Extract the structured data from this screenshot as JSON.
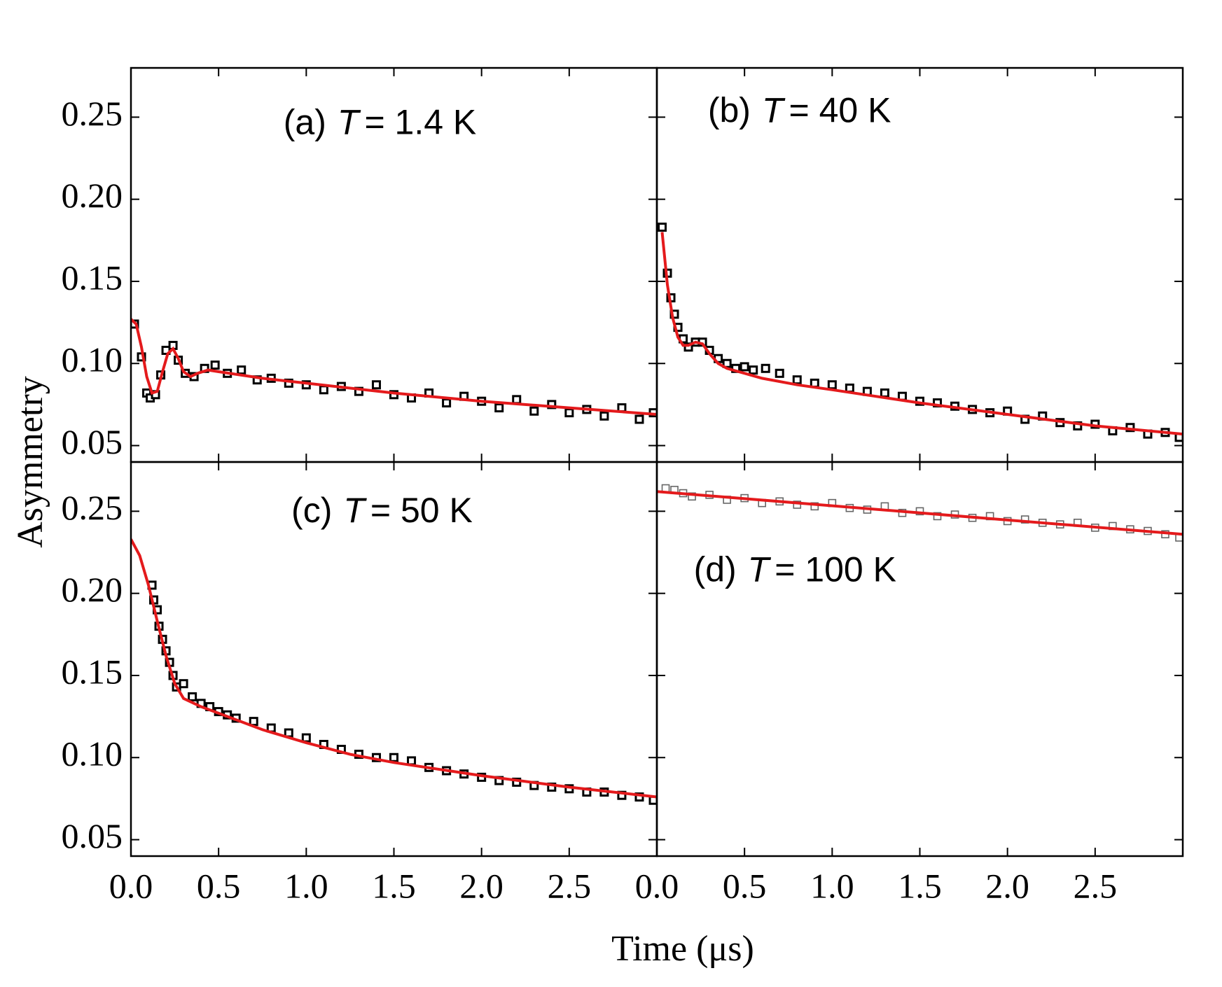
{
  "xlabel": "Time (μs)",
  "ylabel": "Asymmetry",
  "chart_data": [
    {
      "type": "scatter",
      "panel": "(a)",
      "variable": "T",
      "condition": "= 1.4 K",
      "xlim": [
        0,
        3
      ],
      "ylim": [
        0.04,
        0.28
      ],
      "xticks": [
        0,
        0.5,
        1,
        1.5,
        2,
        2.5,
        3
      ],
      "yticks": [
        0.05,
        {
          "value": 0.1,
          "label": "0.10"
        },
        0.15,
        {
          "value": 0.2,
          "label": "0.20"
        },
        0.25
      ],
      "series": [
        {
          "style": "markers",
          "color": "#000000",
          "x": [
            0.02,
            0.06,
            0.09,
            0.11,
            0.14,
            0.17,
            0.2,
            0.24,
            0.27,
            0.31,
            0.36,
            0.42,
            0.48,
            0.55,
            0.63,
            0.72,
            0.8,
            0.9,
            1.0,
            1.1,
            1.2,
            1.3,
            1.4,
            1.5,
            1.6,
            1.7,
            1.8,
            1.9,
            2.0,
            2.1,
            2.2,
            2.3,
            2.4,
            2.5,
            2.6,
            2.7,
            2.8,
            2.9,
            2.98
          ],
          "values": [
            0.124,
            0.104,
            0.082,
            0.079,
            0.081,
            0.093,
            0.108,
            0.111,
            0.102,
            0.094,
            0.092,
            0.097,
            0.099,
            0.094,
            0.096,
            0.09,
            0.091,
            0.088,
            0.087,
            0.084,
            0.086,
            0.083,
            0.087,
            0.081,
            0.079,
            0.082,
            0.076,
            0.08,
            0.077,
            0.073,
            0.078,
            0.071,
            0.075,
            0.07,
            0.072,
            0.068,
            0.073,
            0.066,
            0.07
          ]
        },
        {
          "style": "line",
          "color": "#e41a1c",
          "x": [
            0,
            0.03,
            0.06,
            0.09,
            0.12,
            0.15,
            0.18,
            0.21,
            0.24,
            0.27,
            0.3,
            0.34,
            0.38,
            0.44,
            0.5,
            0.75,
            1,
            1.5,
            2,
            2.5,
            3
          ],
          "values": [
            0.127,
            0.124,
            0.11,
            0.092,
            0.082,
            0.083,
            0.095,
            0.106,
            0.109,
            0.103,
            0.095,
            0.092,
            0.094,
            0.096,
            0.095,
            0.091,
            0.088,
            0.082,
            0.077,
            0.073,
            0.069
          ]
        }
      ]
    },
    {
      "type": "scatter",
      "panel": "(b)",
      "variable": "T",
      "condition": "= 40 K",
      "xlim": [
        0,
        3
      ],
      "ylim": [
        0.04,
        0.28
      ],
      "xticks": [
        0,
        0.5,
        1,
        1.5,
        2,
        2.5,
        3
      ],
      "yticks": [
        0.05,
        0.1,
        0.15,
        0.2,
        0.25
      ],
      "series": [
        {
          "style": "markers",
          "color": "#000000",
          "x": [
            0.03,
            0.06,
            0.08,
            0.1,
            0.12,
            0.15,
            0.18,
            0.22,
            0.26,
            0.3,
            0.35,
            0.4,
            0.45,
            0.5,
            0.55,
            0.62,
            0.7,
            0.8,
            0.9,
            1.0,
            1.1,
            1.2,
            1.3,
            1.4,
            1.5,
            1.6,
            1.7,
            1.8,
            1.9,
            2.0,
            2.1,
            2.2,
            2.3,
            2.4,
            2.5,
            2.6,
            2.7,
            2.8,
            2.9,
            2.98
          ],
          "values": [
            0.183,
            0.155,
            0.14,
            0.13,
            0.122,
            0.115,
            0.11,
            0.113,
            0.113,
            0.108,
            0.103,
            0.1,
            0.097,
            0.098,
            0.096,
            0.097,
            0.094,
            0.09,
            0.088,
            0.087,
            0.085,
            0.083,
            0.082,
            0.08,
            0.077,
            0.076,
            0.074,
            0.072,
            0.07,
            0.071,
            0.066,
            0.068,
            0.064,
            0.062,
            0.063,
            0.059,
            0.061,
            0.057,
            0.058,
            0.055
          ]
        },
        {
          "style": "line",
          "color": "#e41a1c",
          "x": [
            0.03,
            0.06,
            0.09,
            0.12,
            0.15,
            0.18,
            0.22,
            0.26,
            0.3,
            0.35,
            0.4,
            0.5,
            0.6,
            0.8,
            1,
            1.5,
            2,
            2.5,
            3
          ],
          "values": [
            0.18,
            0.148,
            0.128,
            0.116,
            0.111,
            0.111,
            0.113,
            0.112,
            0.106,
            0.1,
            0.097,
            0.094,
            0.091,
            0.087,
            0.084,
            0.076,
            0.069,
            0.062,
            0.057
          ]
        }
      ]
    },
    {
      "type": "scatter",
      "panel": "(c)",
      "variable": "T",
      "condition": "= 50 K",
      "xlim": [
        0,
        3
      ],
      "ylim": [
        0.04,
        0.28
      ],
      "xticks": [
        {
          "value": 0,
          "label": "0.0"
        },
        0.5,
        {
          "value": 1,
          "label": "1.0"
        },
        1.5,
        {
          "value": 2,
          "label": "2.0"
        },
        2.5
      ],
      "yticks": [
        0.05,
        {
          "value": 0.1,
          "label": "0.10"
        },
        0.15,
        {
          "value": 0.2,
          "label": "0.20"
        },
        0.25
      ],
      "series": [
        {
          "style": "markers",
          "color": "#000000",
          "x": [
            0.12,
            0.13,
            0.15,
            0.16,
            0.18,
            0.2,
            0.22,
            0.24,
            0.26,
            0.3,
            0.35,
            0.4,
            0.45,
            0.5,
            0.55,
            0.6,
            0.7,
            0.8,
            0.9,
            1.0,
            1.1,
            1.2,
            1.3,
            1.4,
            1.5,
            1.6,
            1.7,
            1.8,
            1.9,
            2.0,
            2.1,
            2.2,
            2.3,
            2.4,
            2.5,
            2.6,
            2.7,
            2.8,
            2.9,
            2.98
          ],
          "values": [
            0.205,
            0.196,
            0.19,
            0.18,
            0.172,
            0.165,
            0.158,
            0.15,
            0.143,
            0.145,
            0.137,
            0.133,
            0.131,
            0.128,
            0.126,
            0.124,
            0.122,
            0.118,
            0.115,
            0.112,
            0.108,
            0.105,
            0.102,
            0.1,
            0.1,
            0.098,
            0.094,
            0.092,
            0.09,
            0.088,
            0.086,
            0.085,
            0.083,
            0.082,
            0.081,
            0.079,
            0.079,
            0.077,
            0.076,
            0.074
          ]
        },
        {
          "style": "line",
          "color": "#e41a1c",
          "x": [
            0,
            0.05,
            0.1,
            0.15,
            0.2,
            0.25,
            0.3,
            0.4,
            0.5,
            0.6,
            0.75,
            1,
            1.25,
            1.5,
            2,
            2.5,
            3
          ],
          "values": [
            0.233,
            0.223,
            0.205,
            0.183,
            0.162,
            0.145,
            0.136,
            0.131,
            0.127,
            0.123,
            0.117,
            0.109,
            0.102,
            0.097,
            0.089,
            0.082,
            0.076
          ]
        }
      ]
    },
    {
      "type": "scatter",
      "panel": "(d)",
      "variable": "T",
      "condition": "= 100 K",
      "xlim": [
        0,
        3
      ],
      "ylim": [
        0.04,
        0.28
      ],
      "xticks": [
        {
          "value": 0,
          "label": "0.0"
        },
        0.5,
        {
          "value": 1,
          "label": "1.0"
        },
        1.5,
        {
          "value": 2,
          "label": "2.0"
        },
        2.5
      ],
      "yticks": [
        0.05,
        0.1,
        0.15,
        0.2,
        0.25
      ],
      "series": [
        {
          "style": "markers",
          "color": "#666666",
          "x": [
            0.05,
            0.1,
            0.15,
            0.2,
            0.3,
            0.4,
            0.5,
            0.6,
            0.7,
            0.8,
            0.9,
            1.0,
            1.1,
            1.2,
            1.3,
            1.4,
            1.5,
            1.6,
            1.7,
            1.8,
            1.9,
            2.0,
            2.1,
            2.2,
            2.3,
            2.4,
            2.5,
            2.6,
            2.7,
            2.8,
            2.9,
            2.98
          ],
          "values": [
            0.264,
            0.263,
            0.261,
            0.259,
            0.26,
            0.257,
            0.258,
            0.255,
            0.256,
            0.254,
            0.253,
            0.255,
            0.252,
            0.251,
            0.253,
            0.249,
            0.25,
            0.247,
            0.248,
            0.246,
            0.247,
            0.244,
            0.245,
            0.243,
            0.242,
            0.243,
            0.24,
            0.241,
            0.239,
            0.238,
            0.236,
            0.234
          ]
        },
        {
          "style": "line",
          "color": "#e41a1c",
          "x": [
            0,
            3
          ],
          "values": [
            0.262,
            0.236
          ]
        }
      ]
    }
  ]
}
